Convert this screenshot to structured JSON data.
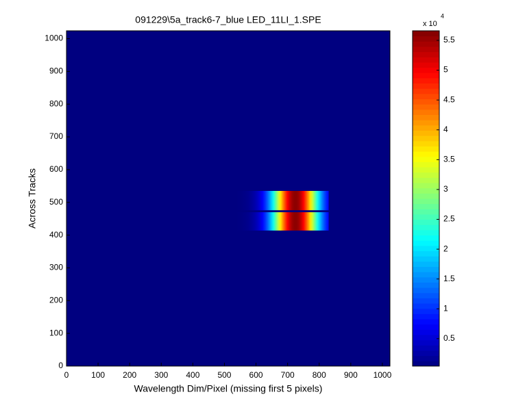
{
  "chart_data": {
    "type": "image",
    "title": "091229\\5a_track6-7_blue LED_11LI_1.SPE",
    "xlabel": "Wavelength Dim/Pixel (missing first 5 pixels)",
    "ylabel": "Across Tracks",
    "xlim": [
      0,
      1024
    ],
    "ylim": [
      0,
      1024
    ],
    "xticks": [
      0,
      100,
      200,
      300,
      400,
      500,
      600,
      700,
      800,
      900,
      1000
    ],
    "yticks": [
      0,
      100,
      200,
      300,
      400,
      500,
      600,
      700,
      800,
      900,
      1000
    ],
    "colormap": "jet",
    "clim": [
      400,
      56600
    ],
    "cticks": [
      {
        "value": 5000,
        "label": "0.5"
      },
      {
        "value": 10000,
        "label": "1"
      },
      {
        "value": 15000,
        "label": "1.5"
      },
      {
        "value": 20000,
        "label": "2"
      },
      {
        "value": 25000,
        "label": "2.5"
      },
      {
        "value": 30000,
        "label": "3"
      },
      {
        "value": 35000,
        "label": "3.5"
      },
      {
        "value": 40000,
        "label": "4"
      },
      {
        "value": 45000,
        "label": "4.5"
      },
      {
        "value": 50000,
        "label": "5"
      },
      {
        "value": 55000,
        "label": "5.5"
      }
    ],
    "colorbar_scale": {
      "label": "x 10",
      "exponent": "4"
    },
    "bands": [
      {
        "x": [
          540,
          830
        ],
        "y": [
          476,
          535
        ],
        "peak_x": 725,
        "peak": 56000
      },
      {
        "x": [
          540,
          830
        ],
        "y": [
          414,
          470
        ],
        "peak_x": 725,
        "peak": 56000
      }
    ]
  }
}
